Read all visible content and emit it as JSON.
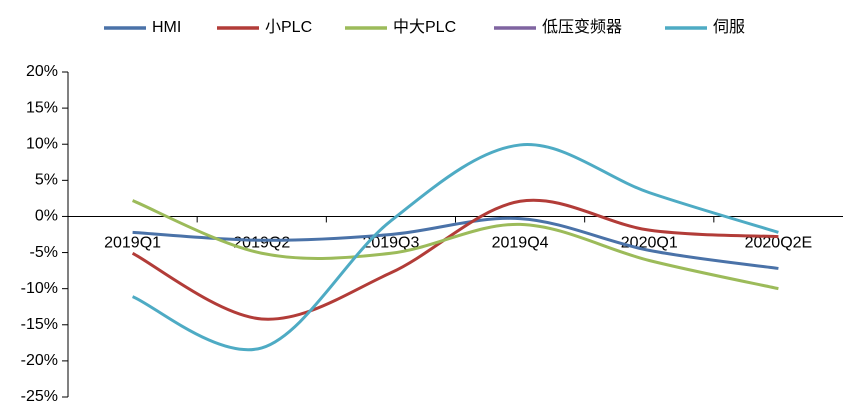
{
  "chart_data": {
    "type": "line",
    "categories": [
      "2019Q1",
      "2019Q2",
      "2019Q3",
      "2019Q4",
      "2020Q1",
      "2020Q2E"
    ],
    "series": [
      {
        "name": "HMI",
        "color": "#4a72a8",
        "values": [
          -2.2,
          -3.3,
          -2.5,
          -0.3,
          -4.7,
          -7.2
        ]
      },
      {
        "name": "小PLC",
        "color": "#b23c38",
        "values": [
          -5.1,
          -14.2,
          -7.8,
          2.1,
          -1.9,
          -2.8
        ]
      },
      {
        "name": "中大PLC",
        "color": "#9cbb5a",
        "values": [
          2.2,
          -5.1,
          -5.1,
          -1.1,
          -6.1,
          -10
        ]
      },
      {
        "name": "低压变频器",
        "color": "#7f64a0",
        "values": [
          null,
          null,
          null,
          null,
          null,
          null
        ]
      },
      {
        "name": "伺服",
        "color": "#4eabc4",
        "values": [
          -11.1,
          -18.2,
          -0.6,
          9.9,
          3.3,
          -2.2
        ]
      }
    ],
    "ylim": [
      -25,
      20
    ],
    "yticks": [
      {
        "value": -25,
        "label": "-25%"
      },
      {
        "value": -20,
        "label": "-20%"
      },
      {
        "value": -15,
        "label": "-15%"
      },
      {
        "value": -10,
        "label": "-10%"
      },
      {
        "value": -5,
        "label": "-5%"
      },
      {
        "value": 0,
        "label": "0%"
      },
      {
        "value": 5,
        "label": "5%"
      },
      {
        "value": 10,
        "label": "10%"
      },
      {
        "value": 15,
        "label": "15%"
      },
      {
        "value": 20,
        "label": "20%"
      }
    ],
    "smooth": true,
    "legend": "top"
  }
}
